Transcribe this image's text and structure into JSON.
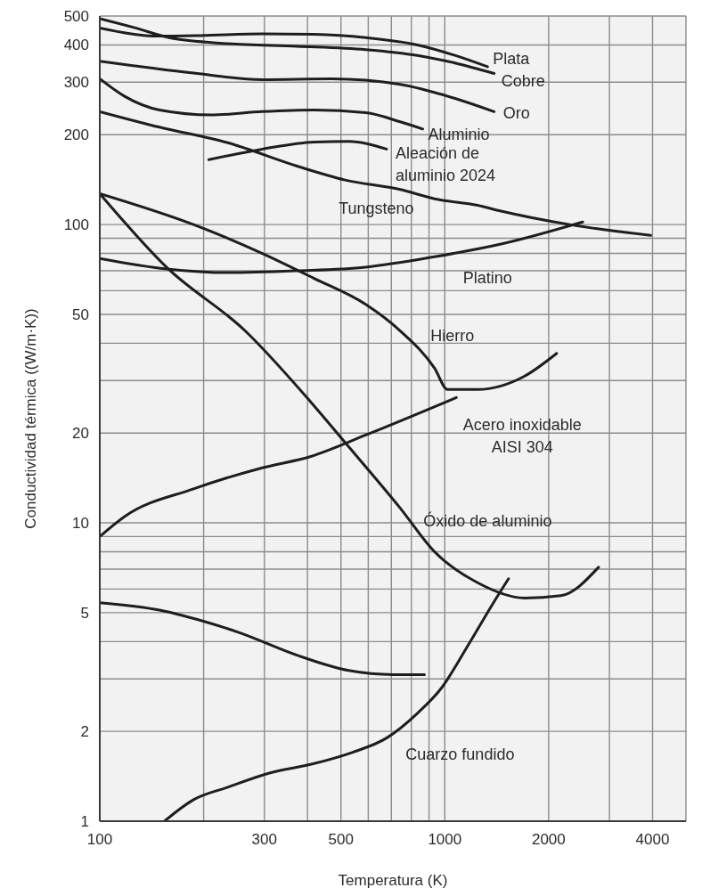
{
  "chart_data": {
    "type": "line",
    "xlabel": "Temperatura (K)",
    "ylabel": "Conductividad térmica ((W/m·K))",
    "log": "xy",
    "grid": true,
    "legend": false,
    "marker": "none",
    "line_style": "solid",
    "xlim": [
      100,
      5000
    ],
    "ylim": [
      1,
      500
    ],
    "xticks": [
      100,
      {
        "value": 200,
        "label": null
      },
      300,
      {
        "value": 400,
        "label": null
      },
      500,
      {
        "value": 600,
        "label": null
      },
      {
        "value": 700,
        "label": null
      },
      {
        "value": 800,
        "label": null
      },
      {
        "value": 900,
        "label": null
      },
      1000,
      2000,
      {
        "value": 3000,
        "label": null
      },
      4000
    ],
    "yticks": [
      1,
      2,
      {
        "value": 3,
        "label": null
      },
      {
        "value": 4,
        "label": null
      },
      5,
      {
        "value": 6,
        "label": null
      },
      {
        "value": 7,
        "label": null
      },
      {
        "value": 8,
        "label": null
      },
      {
        "value": 9,
        "label": null
      },
      10,
      20,
      {
        "value": 30,
        "label": null
      },
      {
        "value": 40,
        "label": null
      },
      50,
      {
        "value": 60,
        "label": null
      },
      {
        "value": 70,
        "label": null
      },
      {
        "value": 80,
        "label": null
      },
      {
        "value": 90,
        "label": null
      },
      100,
      200,
      300,
      400,
      500
    ],
    "series": [
      {
        "name": "Plata",
        "color": "#1e1e1e",
        "x": [
          100,
          149,
          196,
          296,
          418,
          590,
          833,
          1070,
          1330
        ],
        "values": [
          456,
          428,
          430,
          436,
          434,
          423,
          400,
          369,
          338
        ]
      },
      {
        "name": "Cobre",
        "color": "#1e1e1e",
        "x": [
          100,
          127,
          159,
          235,
          373,
          590,
          833,
          1070,
          1390
        ],
        "values": [
          490,
          456,
          423,
          404,
          396,
          386,
          369,
          348,
          321
        ]
      },
      {
        "name": "Oro",
        "color": "#1e1e1e",
        "x": [
          100,
          187,
          296,
          469,
          743,
          979,
          1390
        ],
        "values": [
          353,
          322,
          306,
          308,
          295,
          273,
          239
        ]
      },
      {
        "name": "Aluminio",
        "color": "#1e1e1e",
        "x": [
          100,
          118,
          149,
          210,
          296,
          418,
          590,
          743,
          863
        ],
        "values": [
          308,
          269,
          242,
          233,
          239,
          242,
          237,
          221,
          209
        ]
      },
      {
        "name": "Aleación de aluminio 2024",
        "color": "#1e1e1e",
        "x": [
          207,
          296,
          418,
          526,
          678
        ],
        "values": [
          165,
          179,
          189,
          190,
          179
        ]
      },
      {
        "name": "Tungsteno",
        "color": "#1e1e1e",
        "x": [
          100,
          149,
          235,
          373,
          514,
          743,
          934,
          1245,
          1455,
          2300,
          3950
        ],
        "values": [
          239,
          212,
          188,
          157,
          141,
          131,
          122,
          116,
          111,
          100,
          92
        ]
      },
      {
        "name": "Platino",
        "color": "#1e1e1e",
        "x": [
          100,
          156,
          235,
          373,
          590,
          934,
          1455,
          2510
        ],
        "values": [
          77,
          71,
          69,
          70,
          72,
          78,
          86,
          102
        ]
      },
      {
        "name": "Hierro",
        "color": "#1e1e1e",
        "x": [
          100,
          187,
          296,
          418,
          590,
          743,
          934,
          1018,
          1245,
          1700,
          2110
        ],
        "values": [
          127,
          100,
          80,
          66,
          54,
          44,
          33,
          28,
          28,
          31,
          37
        ]
      },
      {
        "name": "Acero inoxidable AISI 304",
        "color": "#1e1e1e",
        "x": [
          100,
          118,
          187,
          296,
          409,
          590,
          1080
        ],
        "values": [
          9.0,
          10.5,
          13.0,
          15.3,
          16.7,
          19.7,
          26.3
        ]
      },
      {
        "name": "Óxido de aluminio",
        "color": "#1e1e1e",
        "x": [
          100,
          156,
          264,
          409,
          514,
          743,
          934,
          1245,
          1700,
          2170,
          2790
        ],
        "values": [
          127,
          72,
          44,
          25.4,
          18.6,
          11.2,
          8.0,
          6.3,
          5.6,
          5.7,
          7.1
        ]
      },
      {
        "color": "#1e1e1e",
        "x": [
          100,
          149,
          210,
          252,
          373,
          526,
          710,
          873
        ],
        "values": [
          5.4,
          5.1,
          4.6,
          4.3,
          3.6,
          3.2,
          3.1,
          3.1
        ]
      },
      {
        "name": "Cuarzo fundido",
        "color": "#1e1e1e",
        "x": [
          154,
          187,
          235,
          310,
          418,
          539,
          678,
          833,
          979,
          1170,
          1370,
          1530
        ],
        "values": [
          1.0,
          1.18,
          1.3,
          1.45,
          1.56,
          1.7,
          1.9,
          2.3,
          2.8,
          3.9,
          5.3,
          6.5
        ]
      }
    ]
  }
}
